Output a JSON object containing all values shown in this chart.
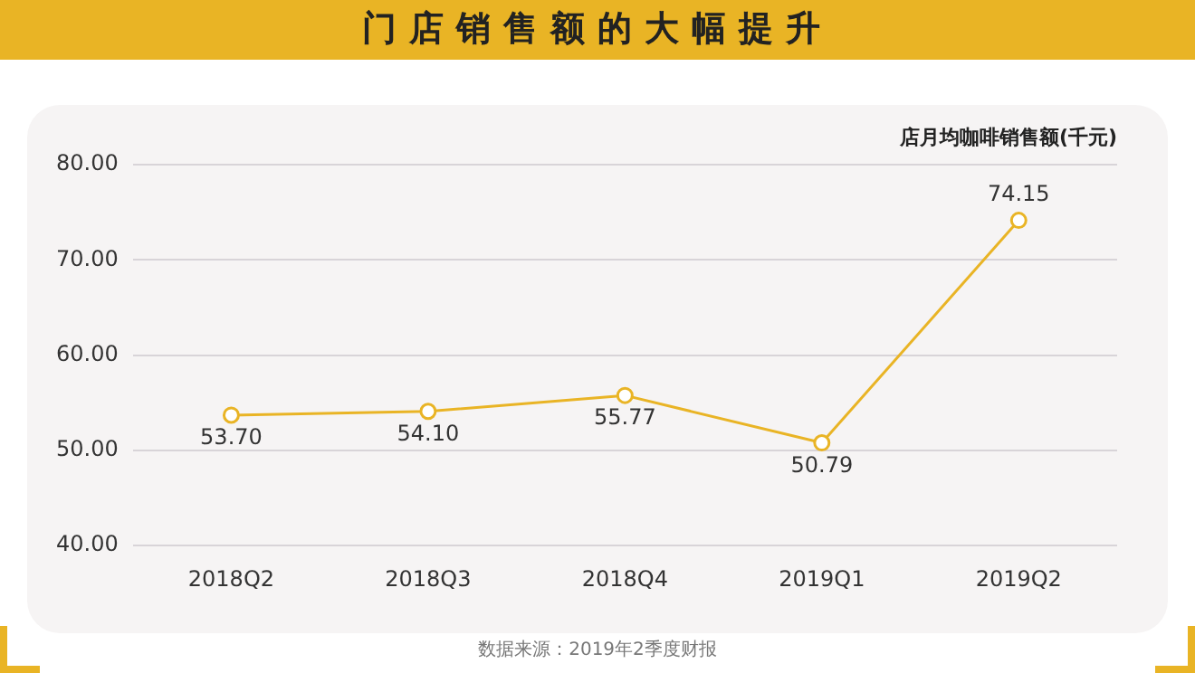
{
  "chart_data": {
    "type": "line",
    "title": "门店销售额的大幅提升",
    "ylabel": "店月均咖啡销售额(千元)",
    "categories": [
      "2018Q2",
      "2018Q3",
      "2018Q4",
      "2019Q1",
      "2019Q2"
    ],
    "series": [
      {
        "color": "#e9b425",
        "values": [
          53.7,
          54.1,
          55.77,
          50.79,
          74.15
        ],
        "value_labels": [
          "53.70",
          "54.10",
          "55.77",
          "50.79",
          "74.15"
        ]
      }
    ],
    "ylim": [
      40,
      80
    ],
    "yticks": [
      {
        "value": 40,
        "label": "40.00"
      },
      {
        "value": 50,
        "label": "50.00"
      },
      {
        "value": 60,
        "label": "60.00"
      },
      {
        "value": 70,
        "label": "70.00"
      },
      {
        "value": 80,
        "label": "80.00"
      }
    ],
    "grid": "y",
    "marker": "circle",
    "line_style": "solid",
    "annotations": [
      "数据来源：2019年2季度财报"
    ]
  }
}
